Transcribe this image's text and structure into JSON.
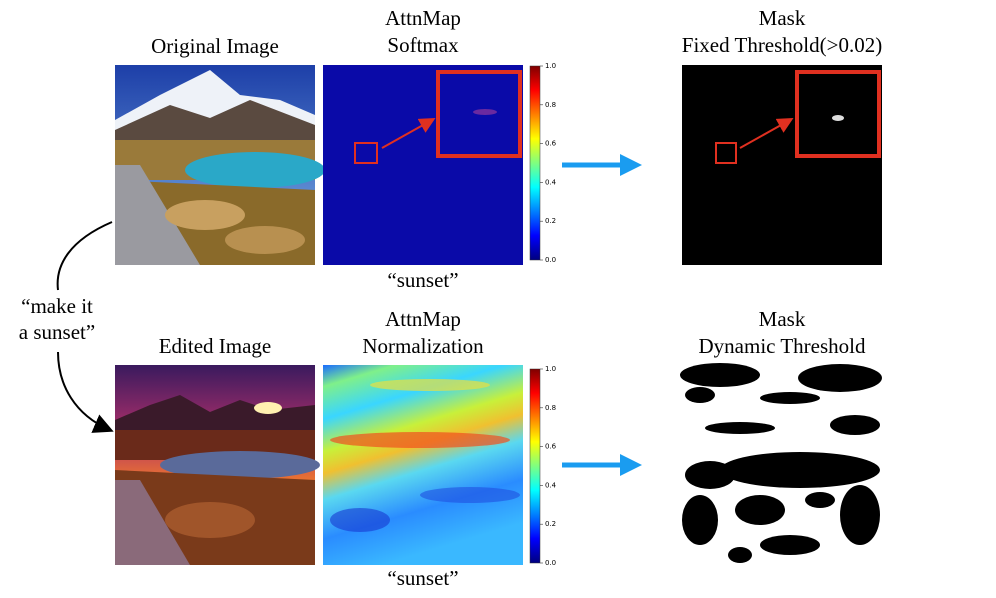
{
  "top": {
    "left_title": "Original Image",
    "attn_title": [
      "AttnMap",
      "Softmax"
    ],
    "mask_title": [
      "Mask",
      "Fixed Threshold(>0.02)"
    ],
    "caption": "“sunset”"
  },
  "bottom": {
    "left_title": "Edited Image",
    "attn_title": [
      "AttnMap",
      "Normalization"
    ],
    "mask_title": [
      "Mask",
      "Dynamic Threshold"
    ],
    "caption": "“sunset”"
  },
  "prompt": [
    "“make it",
    "a sunset”"
  ],
  "colorbar_ticks": [
    "0.0",
    "0.2",
    "0.4",
    "0.6",
    "0.8",
    "1.0"
  ]
}
